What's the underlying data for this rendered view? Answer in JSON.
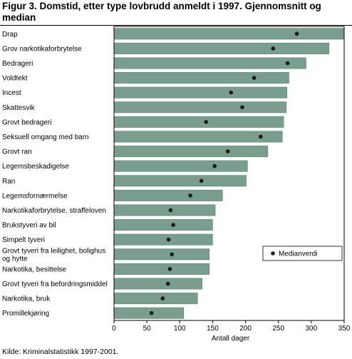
{
  "title": "Figur 3. Domstid, etter type lovbrudd anmeldt i 1997. Gjennomsnitt og median",
  "source": "Kilde: Kriminalstatistikk 1997-2001.",
  "colors": {
    "bar": "#7a9e8e",
    "bar_edge": "#5e8272",
    "marker": "#1a1a1a",
    "plot_border": "#000000"
  },
  "chart_data": {
    "type": "bar",
    "orientation": "horizontal",
    "categories": [
      "Drap",
      "Grov narkotikaforbrytelse",
      "Bedrageri",
      "Voldtekt",
      "Incest",
      "Skattesvik",
      "Grovt bedrageri",
      "Seksuell omgang med barn",
      "Grovt ran",
      "Legemsbeskadigelse",
      "Ran",
      "Legemsfornærmelse",
      "Narkotikaforbrytelse, straffeloven",
      "Brukstyveri av bil",
      "Simpelt tyveri",
      "Grovt tyveri fra leilighet, bolighus og hytte",
      "Narkotika, besittelse",
      "Grovt tyveri fra befordringsmiddel",
      "Narkotika, bruk",
      "Promillekjøring"
    ],
    "category_lines": [
      [
        "Drap"
      ],
      [
        "Grov narkotikaforbrytelse"
      ],
      [
        "Bedrageri"
      ],
      [
        "Voldtekt"
      ],
      [
        "Incest"
      ],
      [
        "Skattesvik"
      ],
      [
        "Grovt bedrageri"
      ],
      [
        "Seksuell omgang med barn"
      ],
      [
        "Grovt ran"
      ],
      [
        "Legemsbeskadigelse"
      ],
      [
        "Ran"
      ],
      [
        "Legemsfornærmelse"
      ],
      [
        "Narkotikaforbrytelse, straffeloven"
      ],
      [
        "Brukstyveri av bil"
      ],
      [
        "Simpelt tyveri"
      ],
      [
        "Grovt tyveri fra leilighet, bolighus",
        "og hytte"
      ],
      [
        "Narkotika, besittelse"
      ],
      [
        "Grovt tyveri fra befordringsmiddel"
      ],
      [
        "Narkotika, bruk"
      ],
      [
        "Promillekjøring"
      ]
    ],
    "series": [
      {
        "name": "",
        "kind": "bar",
        "values": [
          350,
          327,
          292,
          266,
          263,
          262,
          258,
          256,
          234,
          203,
          201,
          165,
          154,
          150,
          150,
          145,
          145,
          134,
          127,
          106
        ]
      },
      {
        "name": "Medianverdi",
        "kind": "marker",
        "values": [
          278,
          242,
          264,
          213,
          178,
          195,
          140,
          223,
          173,
          153,
          133,
          116,
          86,
          90,
          83,
          88,
          85,
          82,
          74,
          57
        ]
      }
    ],
    "xlabel": "Antall dager",
    "ylabel": "",
    "xlim": [
      0,
      350
    ],
    "xticks": [
      0,
      50,
      100,
      150,
      200,
      250,
      300,
      350
    ],
    "grid": false,
    "legend": {
      "position": "right",
      "entries": [
        "Medianverdi"
      ]
    }
  }
}
